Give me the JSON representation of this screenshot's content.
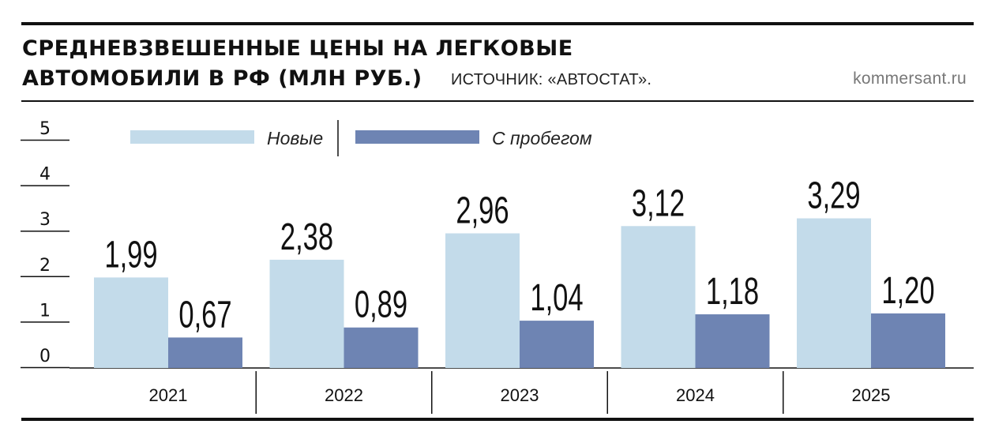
{
  "header": {
    "title_line1": "СРЕДНЕВЗВЕШЕННЫЕ ЦЕНЫ НА ЛЕГКОВЫЕ",
    "title_line2": "АВТОМОБИЛИ В РФ (МЛН РУБ.)",
    "source": "ИСТОЧНИК: «АВТОСТАТ».",
    "site": "kommersant.ru"
  },
  "chart_data": {
    "type": "bar",
    "title": "СРЕДНЕВЗВЕШЕННЫЕ ЦЕНЫ НА ЛЕГКОВЫЕ АВТОМОБИЛИ В РФ (МЛН РУБ.)",
    "xlabel": "",
    "ylabel": "млн руб.",
    "ylim": [
      0,
      5
    ],
    "yticks": [
      "0",
      "1",
      "2",
      "3",
      "4",
      "5"
    ],
    "categories": [
      "2021",
      "2022",
      "2023",
      "2024",
      "2025"
    ],
    "series": [
      {
        "name": "Новые",
        "color": "#c3dbea",
        "values": [
          1.99,
          2.38,
          2.96,
          3.12,
          3.29
        ],
        "labels": [
          "1,99",
          "2,38",
          "2,96",
          "3,12",
          "3,29"
        ]
      },
      {
        "name": "С пробегом",
        "color": "#6e84b3",
        "values": [
          0.67,
          0.89,
          1.04,
          1.18,
          1.2
        ],
        "labels": [
          "0,67",
          "0,89",
          "1,04",
          "1,18",
          "1,20"
        ]
      }
    ],
    "grid": false,
    "legend_position": "top"
  }
}
